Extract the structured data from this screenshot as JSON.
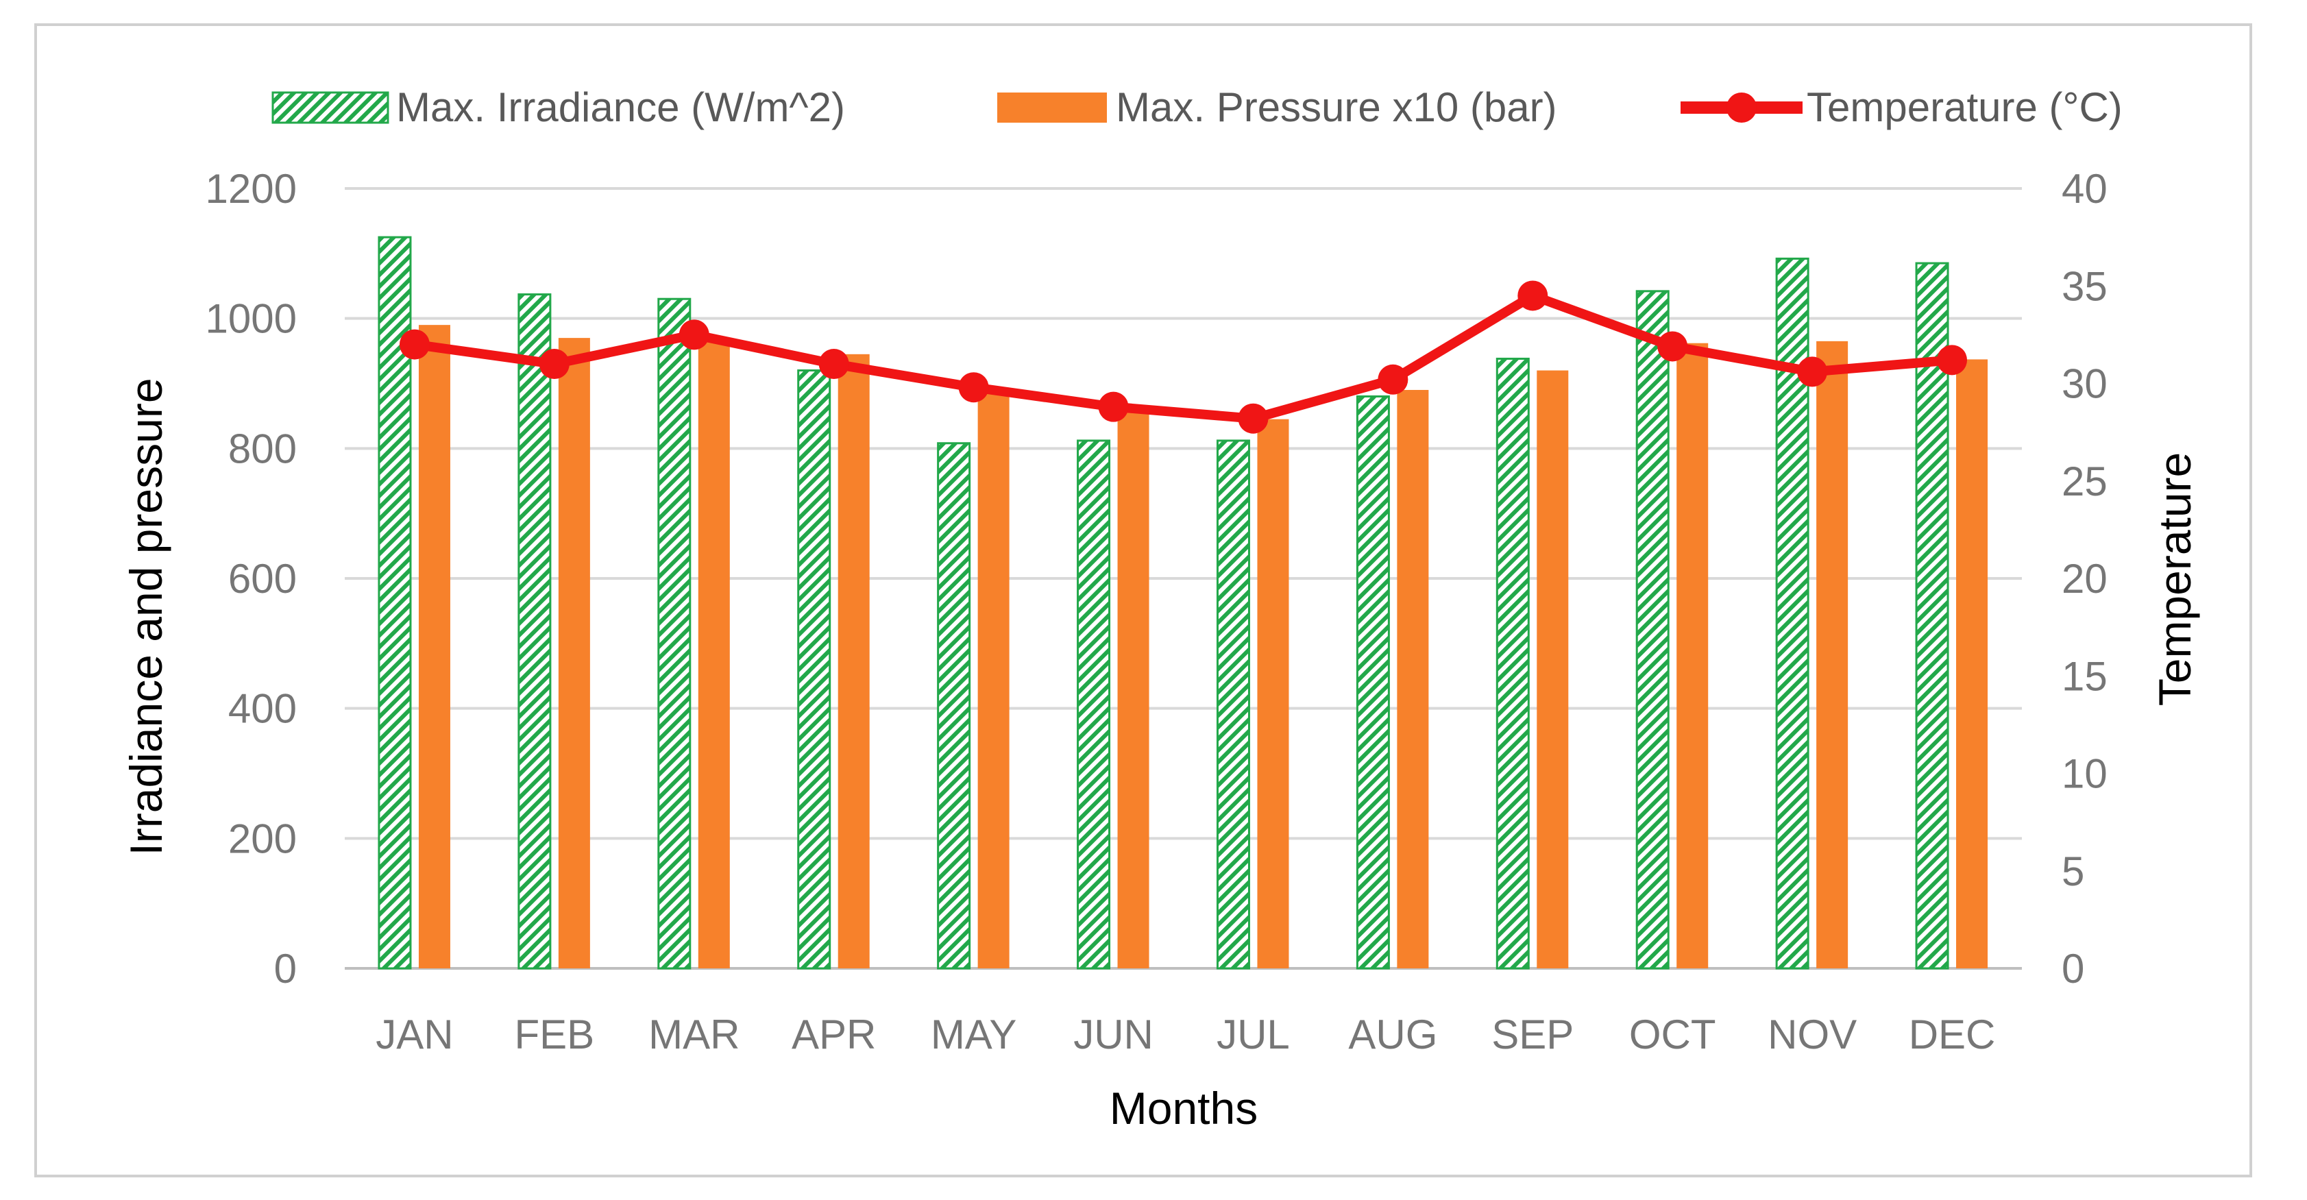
{
  "chart_data": {
    "type": "bar",
    "title": "",
    "categories": [
      "JAN",
      "FEB",
      "MAR",
      "APR",
      "MAY",
      "JUN",
      "JUL",
      "AUG",
      "SEP",
      "OCT",
      "NOV",
      "DEC"
    ],
    "series": [
      {
        "name": "Max. Irradiance (W/m^2)",
        "kind": "bar",
        "axis": "left",
        "pattern": "green-diagonal-hatch",
        "color": "#22A84A",
        "values": [
          1125,
          1037,
          1030,
          920,
          808,
          812,
          812,
          880,
          938,
          1042,
          1092,
          1085
        ]
      },
      {
        "name": "Max. Pressure x10 (bar)",
        "kind": "bar",
        "axis": "left",
        "color": "#F7812B",
        "values": [
          990,
          970,
          970,
          945,
          890,
          865,
          845,
          890,
          920,
          962,
          965,
          937
        ]
      },
      {
        "name": "Temperature (°C)",
        "kind": "line",
        "axis": "right",
        "color": "#F01515",
        "values": [
          32.0,
          31.0,
          32.5,
          31.0,
          29.8,
          28.8,
          28.2,
          30.2,
          34.5,
          31.9,
          30.6,
          31.2
        ]
      }
    ],
    "xlabel": "Months",
    "ylabel": "Irradiance and pressure",
    "y2label": "Temperature",
    "ylim": [
      0,
      1200
    ],
    "y2lim": [
      0,
      40
    ],
    "yticks": [
      "0",
      "200",
      "400",
      "600",
      "800",
      "1000",
      "1200"
    ],
    "y2ticks": [
      "0",
      "5",
      "10",
      "15",
      "20",
      "25",
      "30",
      "35",
      "40"
    ],
    "grid": true,
    "legend_position": "top"
  }
}
